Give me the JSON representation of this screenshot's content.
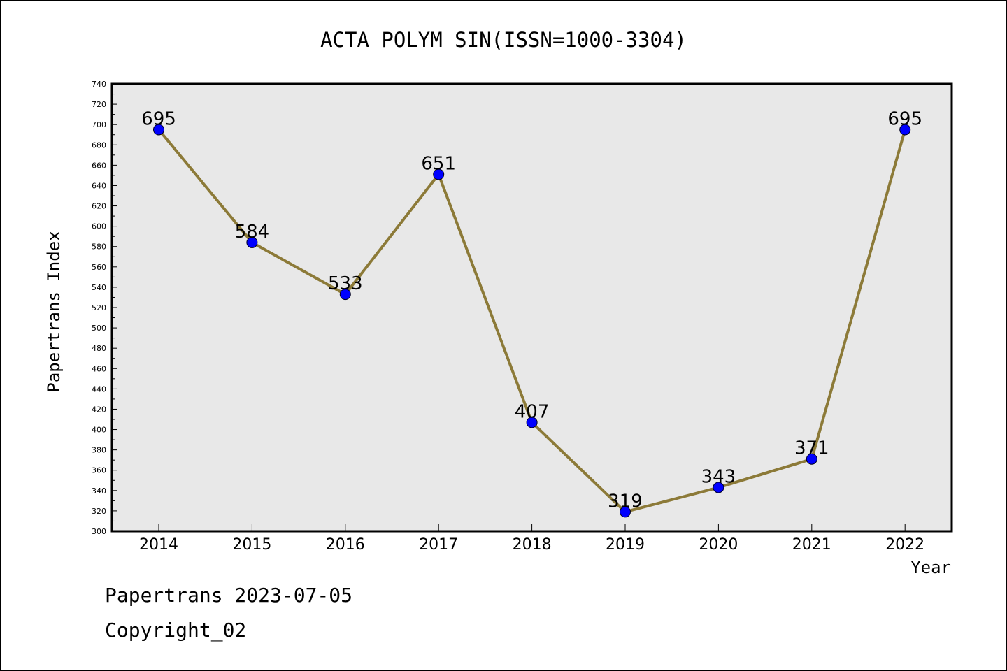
{
  "chart_data": {
    "type": "line",
    "title": "ACTA POLYM SIN(ISSN=1000-3304)",
    "xlabel": "Year",
    "ylabel": "Papertrans Index",
    "categories": [
      "2014",
      "2015",
      "2016",
      "2017",
      "2018",
      "2019",
      "2020",
      "2021",
      "2022"
    ],
    "series": [
      {
        "values": [
          695,
          584,
          533,
          651,
          407,
          319,
          343,
          371,
          695
        ]
      }
    ],
    "data_labels": [
      "695",
      "584",
      "533",
      "651",
      "407",
      "319",
      "343",
      "371",
      "695"
    ],
    "ylim": [
      300,
      740
    ],
    "y_ticks": [
      "300",
      "320",
      "340",
      "360",
      "380",
      "400",
      "420",
      "440",
      "460",
      "480",
      "500",
      "520",
      "540",
      "560",
      "580",
      "600",
      "620",
      "640",
      "660",
      "680",
      "700",
      "720",
      "740"
    ],
    "grid": false,
    "legend": "none",
    "colors": {
      "line": "#8c7a38",
      "marker": "#0000ff",
      "plot_background": "#e8e8e8",
      "frame": "#000000"
    }
  },
  "footer": {
    "line1": "Papertrans 2023-07-05",
    "line2": "Copyright_02"
  }
}
